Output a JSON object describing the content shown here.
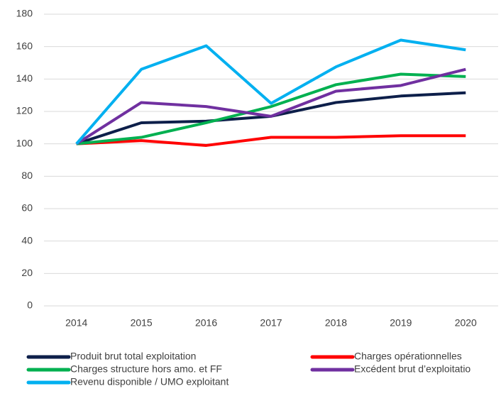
{
  "chart_data": {
    "type": "line",
    "categories": [
      "2014",
      "2015",
      "2016",
      "2017",
      "2018",
      "2019",
      "2020"
    ],
    "series": [
      {
        "name": "Produit brut total exploitation",
        "color": "#0d1f4a",
        "values": [
          100,
          113,
          114,
          117,
          125.5,
          129.5,
          131.5
        ]
      },
      {
        "name": "Charges opérationnelles",
        "color": "#ff0000",
        "values": [
          100,
          102,
          99,
          104,
          104,
          105,
          105
        ]
      },
      {
        "name": "Charges structure hors amo. et FF",
        "color": "#00b050",
        "values": [
          100,
          104,
          113,
          123,
          136.5,
          143,
          141.5
        ]
      },
      {
        "name": "Excédent brut d’exploitatio",
        "color": "#7030a0",
        "values": [
          100,
          125.5,
          123,
          117,
          132.5,
          136,
          146
        ]
      },
      {
        "name": "Revenu disponible / UMO exploitant",
        "color": "#00b0f0",
        "values": [
          100,
          146,
          160.5,
          125,
          147.5,
          164,
          158
        ]
      }
    ],
    "ylim": [
      0,
      180
    ],
    "yticks": [
      0,
      20,
      40,
      60,
      80,
      100,
      120,
      140,
      160,
      180
    ],
    "grid": true,
    "legend": "bottom"
  }
}
